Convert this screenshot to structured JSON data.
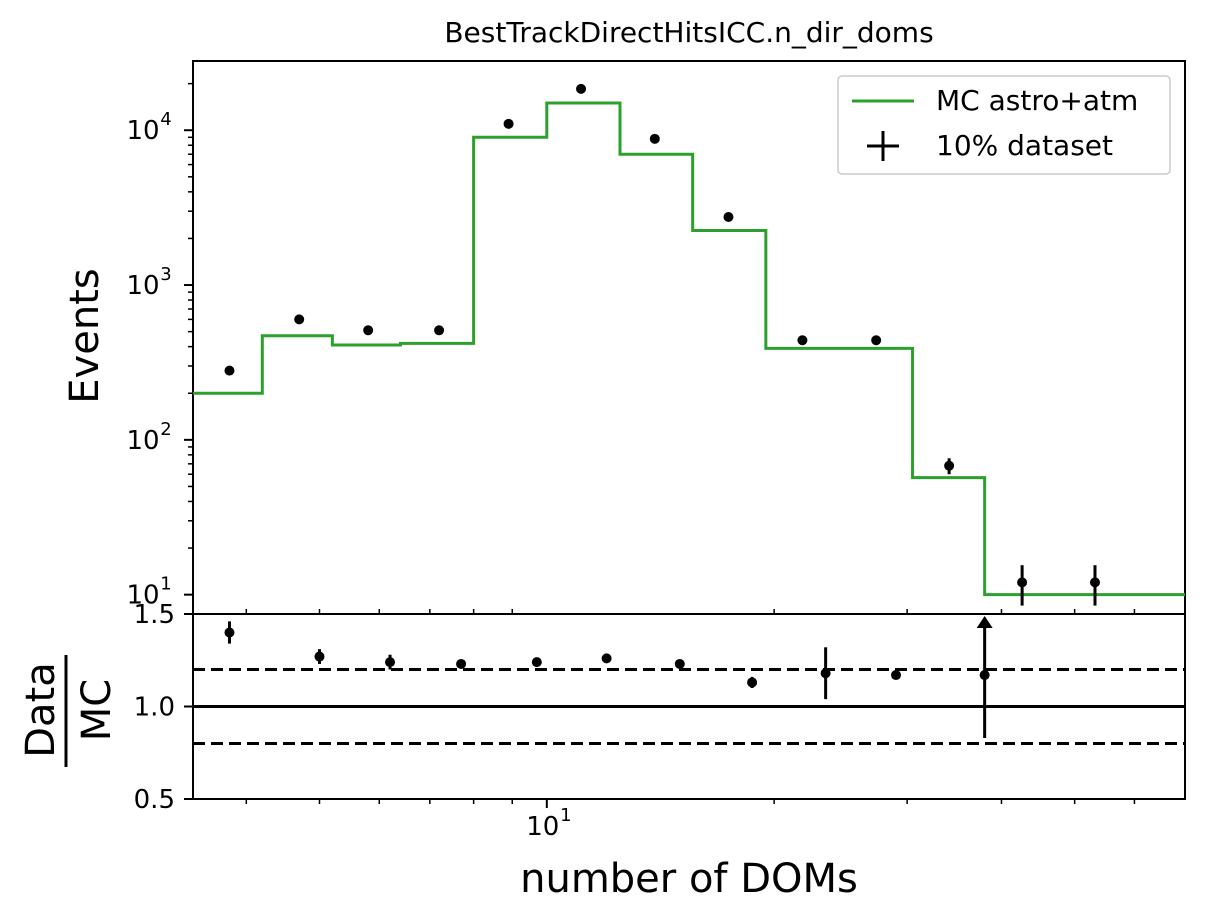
{
  "chart_data": {
    "type": "line",
    "title": "BestTrackDirectHitsICC.n_dir_doms",
    "xlabel": "number of DOMs",
    "xscale": "log",
    "xlim": [
      3.4,
      70
    ],
    "main_panel": {
      "ylabel": "Events",
      "yscale": "log",
      "ylim": [
        7.5,
        28000
      ],
      "yticks": [
        {
          "value": 10,
          "base": "10",
          "exp": "1"
        },
        {
          "value": 100,
          "base": "10",
          "exp": "2"
        },
        {
          "value": 1000,
          "base": "10",
          "exp": "3"
        },
        {
          "value": 10000,
          "base": "10",
          "exp": "4"
        }
      ],
      "series": [
        {
          "name": "MC astro+atm",
          "kind": "step",
          "color": "#2ca02c",
          "bin_edges": [
            3.4,
            4.2,
            5.2,
            6.4,
            8.0,
            10.0,
            12.5,
            15.6,
            19.5,
            24.4,
            30.5,
            38.0,
            47.5,
            70.0
          ],
          "values": [
            200,
            470,
            410,
            420,
            9000,
            15000,
            7000,
            2250,
            390,
            390,
            57,
            10,
            10
          ]
        },
        {
          "name": "10% dataset",
          "kind": "errorbar",
          "color": "#000000",
          "x": [
            3.8,
            4.7,
            5.8,
            7.2,
            8.9,
            11.1,
            13.9,
            17.4,
            21.8,
            27.3,
            34.1,
            42.6,
            53.2
          ],
          "values": [
            280,
            600,
            510,
            510,
            11000,
            18500,
            8800,
            2750,
            440,
            440,
            68,
            12,
            12
          ],
          "errors": [
            17,
            24,
            23,
            23,
            105,
            136,
            94,
            52,
            21,
            21,
            8,
            3.5,
            3.5
          ]
        }
      ],
      "legend_position": "top-right"
    },
    "ratio_panel": {
      "ylabel_numerator": "Data",
      "ylabel_denominator": "MC",
      "ylim": [
        0.5,
        1.5
      ],
      "yticks": [
        "0.5",
        "1.0",
        "1.5"
      ],
      "xtick_label": {
        "base": "10",
        "exp": "1",
        "value": 10
      },
      "reference_line": 1.0,
      "band_lines": [
        0.8,
        1.2
      ],
      "points": {
        "x": [
          3.8,
          5.0,
          6.2,
          7.7,
          9.7,
          12.0,
          15.0,
          18.7,
          23.4,
          29.0,
          38.0
        ],
        "values": [
          1.4,
          1.27,
          1.24,
          1.23,
          1.24,
          1.26,
          1.23,
          1.13,
          1.18,
          1.17,
          1.17
        ],
        "errors": [
          0.06,
          0.04,
          0.04,
          0.015,
          0.01,
          0.015,
          0.02,
          0.03,
          0.14,
          0.0,
          0.34
        ],
        "arrow_at_index": 10
      }
    }
  }
}
